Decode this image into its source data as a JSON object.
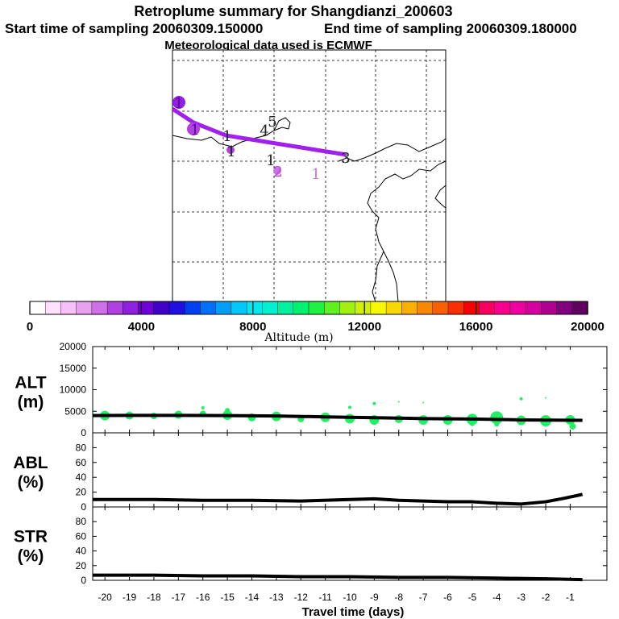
{
  "header": {
    "title": "Retroplume summary for Shangdianzi_200603",
    "start_label": "Start time of sampling 20060309.150000",
    "end_label": "End time of sampling 20060309.180000",
    "met_label": "Meteorological data used is ECMWF"
  },
  "colors": {
    "track": "#a020f0",
    "alt_points": "#22ee66",
    "line": "#000000",
    "grid": "#000000"
  },
  "colorbar": {
    "title": "Altitude (m)",
    "min": 0,
    "max": 20000,
    "tick_labels": [
      "0",
      "4000",
      "8000",
      "12000",
      "16000",
      "20000"
    ],
    "colors": [
      "#ffffff",
      "#ffe0ff",
      "#f8c0f8",
      "#e8a0f0",
      "#d070e8",
      "#b040e0",
      "#9020e0",
      "#7000d8",
      "#4000c8",
      "#2010e0",
      "#0040f0",
      "#0070f8",
      "#00a0f8",
      "#00c8f8",
      "#00e8f0",
      "#00f0d0",
      "#00f0a0",
      "#00f070",
      "#20f040",
      "#60f020",
      "#a0f010",
      "#d0f000",
      "#f8f800",
      "#f8d800",
      "#f8b000",
      "#f88800",
      "#f86000",
      "#f83000",
      "#f80000",
      "#f80060",
      "#f80090",
      "#f000a0",
      "#d800a0",
      "#b00090",
      "#800080",
      "#600060"
    ]
  },
  "map": {
    "trajectory_markers": [
      {
        "label": "1",
        "size": "large"
      },
      {
        "label": "1",
        "size": "large"
      },
      {
        "label": "1",
        "size": "small"
      },
      {
        "label": "1",
        "size": "small"
      },
      {
        "label": "1",
        "size": "none"
      },
      {
        "label": "2",
        "size": "none"
      },
      {
        "label": "1",
        "size": "none"
      },
      {
        "label": "3",
        "size": "none"
      },
      {
        "label": "4",
        "size": "none"
      },
      {
        "label": "5",
        "size": "none"
      }
    ]
  },
  "chart_data": [
    {
      "type": "line",
      "name": "ALT",
      "title": "ALT",
      "ylabel": "(m)",
      "ylim": [
        0,
        20000
      ],
      "yticks": [
        0,
        5000,
        10000,
        15000,
        20000
      ],
      "x": [
        -20.5,
        -19,
        -17,
        -15,
        -13,
        -11,
        -9,
        -7,
        -5,
        -3,
        -0.5
      ],
      "values": [
        4000,
        4050,
        4050,
        4000,
        3900,
        3700,
        3500,
        3300,
        3200,
        3000,
        2900
      ],
      "scatter_points": [
        {
          "x": -20,
          "y": 4000,
          "r": 6
        },
        {
          "x": -19,
          "y": 4000,
          "r": 5
        },
        {
          "x": -18,
          "y": 3900,
          "r": 4
        },
        {
          "x": -17,
          "y": 4200,
          "r": 5
        },
        {
          "x": -16,
          "y": 4400,
          "r": 4
        },
        {
          "x": -15,
          "y": 4100,
          "r": 6
        },
        {
          "x": -15,
          "y": 5200,
          "r": 3
        },
        {
          "x": -16,
          "y": 5800,
          "r": 2
        },
        {
          "x": -14,
          "y": 3600,
          "r": 5
        },
        {
          "x": -13,
          "y": 3800,
          "r": 6
        },
        {
          "x": -12,
          "y": 3200,
          "r": 4
        },
        {
          "x": -11,
          "y": 3600,
          "r": 6
        },
        {
          "x": -10,
          "y": 3300,
          "r": 6
        },
        {
          "x": -10,
          "y": 5900,
          "r": 2
        },
        {
          "x": -9,
          "y": 3000,
          "r": 6
        },
        {
          "x": -9,
          "y": 6800,
          "r": 2
        },
        {
          "x": -8,
          "y": 3200,
          "r": 5
        },
        {
          "x": -8,
          "y": 7200,
          "r": 1
        },
        {
          "x": -7,
          "y": 3000,
          "r": 6
        },
        {
          "x": -7,
          "y": 7000,
          "r": 1
        },
        {
          "x": -6,
          "y": 3000,
          "r": 6
        },
        {
          "x": -5,
          "y": 3100,
          "r": 7
        },
        {
          "x": -5,
          "y": 2100,
          "r": 3
        },
        {
          "x": -4,
          "y": 3500,
          "r": 8
        },
        {
          "x": -4,
          "y": 2000,
          "r": 3
        },
        {
          "x": -3,
          "y": 2900,
          "r": 6
        },
        {
          "x": -3,
          "y": 7900,
          "r": 2
        },
        {
          "x": -2,
          "y": 2800,
          "r": 7
        },
        {
          "x": -2,
          "y": 8100,
          "r": 1
        },
        {
          "x": -1,
          "y": 3000,
          "r": 6
        },
        {
          "x": -0.9,
          "y": 1500,
          "r": 4
        }
      ]
    },
    {
      "type": "line",
      "name": "ABL",
      "title": "ABL",
      "ylabel": "(%)",
      "ylim": [
        0,
        100
      ],
      "yticks": [
        0,
        20,
        40,
        60,
        80
      ],
      "x": [
        -20.5,
        -18,
        -16,
        -14,
        -12,
        -10,
        -9,
        -8,
        -6,
        -5,
        -4,
        -3,
        -2,
        -1.2,
        -0.5
      ],
      "values": [
        10,
        10,
        9,
        9,
        8,
        10,
        11,
        9,
        7,
        7,
        5,
        4,
        7,
        12,
        17
      ]
    },
    {
      "type": "line",
      "name": "STR",
      "title": "STR",
      "ylabel": "(%)",
      "ylim": [
        0,
        100
      ],
      "yticks": [
        0,
        20,
        40,
        60,
        80
      ],
      "x": [
        -20.5,
        -18,
        -16,
        -14,
        -12,
        -10,
        -8,
        -6,
        -4,
        -2,
        -0.5
      ],
      "values": [
        7,
        7,
        6,
        6,
        5,
        5,
        4,
        4,
        3,
        2,
        1
      ],
      "xlabel": "Travel time (days)",
      "xlim": [
        -20.5,
        0.5
      ],
      "xticks": [
        -20,
        -19,
        -18,
        -17,
        -16,
        -15,
        -14,
        -13,
        -12,
        -11,
        -10,
        -9,
        -8,
        -7,
        -6,
        -5,
        -4,
        -3,
        -2,
        -1
      ],
      "xtick_labels": [
        "-20",
        "-19",
        "-18",
        "-17",
        "-16",
        "-15",
        "-14",
        "-13",
        "-12",
        "-11",
        "-10",
        "-9",
        "-8",
        "-7",
        "-6",
        "-5",
        "-4",
        "-3",
        "-2",
        "-1"
      ]
    }
  ]
}
